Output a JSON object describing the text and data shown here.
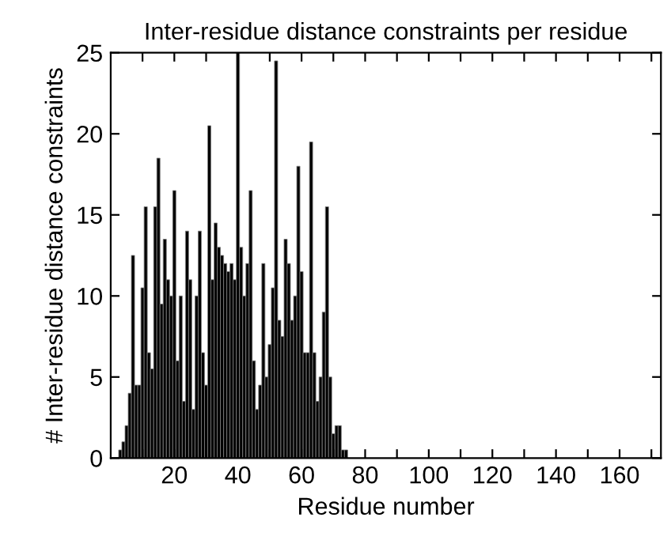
{
  "chart_data": {
    "type": "bar",
    "title": "Inter-residue distance constraints per residue",
    "xlabel": "Residue number",
    "ylabel": "# Inter-residue distance constraints",
    "x": [
      3,
      4,
      5,
      6,
      7,
      8,
      9,
      10,
      11,
      12,
      13,
      14,
      15,
      16,
      17,
      18,
      19,
      20,
      21,
      22,
      23,
      24,
      25,
      26,
      27,
      28,
      29,
      30,
      31,
      32,
      33,
      34,
      35,
      36,
      37,
      38,
      39,
      40,
      41,
      42,
      43,
      44,
      45,
      46,
      47,
      48,
      49,
      50,
      51,
      52,
      53,
      54,
      55,
      56,
      57,
      58,
      59,
      60,
      61,
      62,
      63,
      64,
      65,
      66,
      67,
      68,
      69,
      70,
      71,
      72,
      73,
      74
    ],
    "values": [
      0.5,
      1,
      2,
      4,
      12.5,
      4.5,
      4.5,
      10.5,
      15.5,
      6.5,
      5.5,
      15.5,
      18.5,
      9.5,
      13.5,
      11,
      10,
      16.5,
      6,
      10,
      3.5,
      14,
      11,
      3,
      10,
      14,
      6.5,
      4.5,
      20.5,
      11,
      14.5,
      13,
      12.5,
      12,
      11.5,
      12,
      11,
      25,
      13,
      10,
      12,
      16.5,
      6,
      3,
      4.5,
      12,
      5,
      7,
      10.5,
      24.5,
      8.5,
      7.5,
      13.5,
      12,
      8.5,
      10,
      18,
      11.5,
      6.5,
      6.5,
      19.5,
      6.5,
      3.5,
      5,
      9,
      15.5,
      5,
      1.5,
      2,
      2,
      0.5,
      0.5
    ],
    "color": "#000000",
    "xlim": [
      0,
      173
    ],
    "xticks": [
      {
        "value": 10,
        "label": null
      },
      20,
      {
        "value": 30,
        "label": null
      },
      40,
      {
        "value": 50,
        "label": null
      },
      60,
      {
        "value": 70,
        "label": null
      },
      80,
      {
        "value": 90,
        "label": null
      },
      100,
      {
        "value": 110,
        "label": null
      },
      120,
      {
        "value": 130,
        "label": null
      },
      140,
      {
        "value": 150,
        "label": null
      },
      160,
      {
        "value": 170,
        "label": null
      }
    ],
    "ylim": [
      0,
      25
    ],
    "yticks": [
      0,
      5,
      10,
      15,
      20,
      25
    ],
    "grid": false,
    "legend": false
  }
}
